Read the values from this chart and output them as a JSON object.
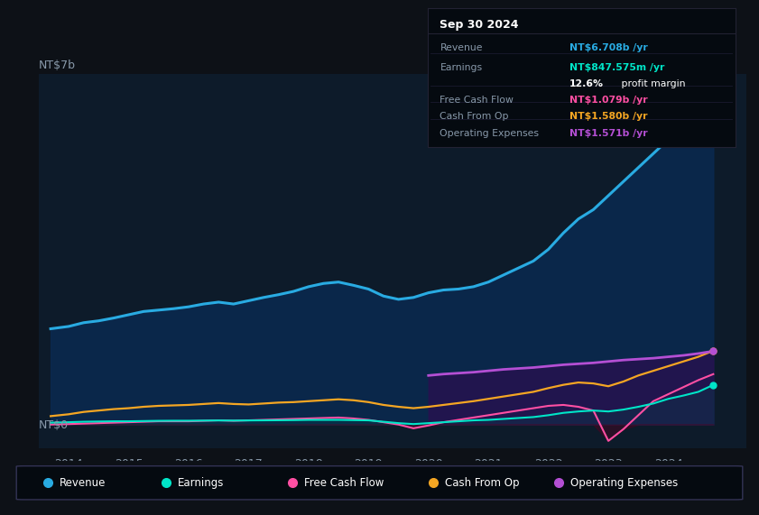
{
  "bg_color": "#0d1117",
  "plot_bg_color": "#0d1b2a",
  "ylabel": "NT$7b",
  "zero_label": "NT$0",
  "x_years": [
    2013.7,
    2014.0,
    2014.25,
    2014.5,
    2014.75,
    2015.0,
    2015.25,
    2015.5,
    2015.75,
    2016.0,
    2016.25,
    2016.5,
    2016.75,
    2017.0,
    2017.25,
    2017.5,
    2017.75,
    2018.0,
    2018.25,
    2018.5,
    2018.75,
    2019.0,
    2019.25,
    2019.5,
    2019.75,
    2020.0,
    2020.25,
    2020.5,
    2020.75,
    2021.0,
    2021.25,
    2021.5,
    2021.75,
    2022.0,
    2022.25,
    2022.5,
    2022.75,
    2023.0,
    2023.25,
    2023.5,
    2023.75,
    2024.0,
    2024.25,
    2024.5,
    2024.75
  ],
  "revenue": [
    2.05,
    2.1,
    2.18,
    2.22,
    2.28,
    2.35,
    2.42,
    2.45,
    2.48,
    2.52,
    2.58,
    2.62,
    2.58,
    2.65,
    2.72,
    2.78,
    2.85,
    2.95,
    3.02,
    3.05,
    2.98,
    2.9,
    2.75,
    2.68,
    2.72,
    2.82,
    2.88,
    2.9,
    2.95,
    3.05,
    3.2,
    3.35,
    3.5,
    3.75,
    4.1,
    4.4,
    4.6,
    4.9,
    5.2,
    5.5,
    5.8,
    6.1,
    6.35,
    6.55,
    6.708
  ],
  "earnings": [
    0.04,
    0.05,
    0.06,
    0.065,
    0.07,
    0.07,
    0.075,
    0.08,
    0.082,
    0.082,
    0.085,
    0.088,
    0.085,
    0.088,
    0.09,
    0.092,
    0.095,
    0.1,
    0.1,
    0.1,
    0.095,
    0.09,
    0.06,
    0.03,
    0.01,
    0.03,
    0.05,
    0.07,
    0.09,
    0.1,
    0.12,
    0.14,
    0.16,
    0.2,
    0.25,
    0.28,
    0.3,
    0.28,
    0.32,
    0.38,
    0.45,
    0.55,
    0.62,
    0.7,
    0.848
  ],
  "free_cash_flow": [
    0.0,
    0.01,
    0.02,
    0.03,
    0.04,
    0.05,
    0.06,
    0.07,
    0.07,
    0.07,
    0.08,
    0.09,
    0.08,
    0.09,
    0.1,
    0.11,
    0.12,
    0.13,
    0.14,
    0.15,
    0.13,
    0.1,
    0.05,
    0.0,
    -0.08,
    -0.02,
    0.05,
    0.1,
    0.15,
    0.2,
    0.25,
    0.3,
    0.35,
    0.4,
    0.42,
    0.38,
    0.3,
    -0.35,
    -0.1,
    0.2,
    0.5,
    0.65,
    0.8,
    0.95,
    1.079
  ],
  "cash_from_op": [
    0.18,
    0.22,
    0.27,
    0.3,
    0.33,
    0.35,
    0.38,
    0.4,
    0.41,
    0.42,
    0.44,
    0.46,
    0.44,
    0.43,
    0.45,
    0.47,
    0.48,
    0.5,
    0.52,
    0.54,
    0.52,
    0.48,
    0.42,
    0.38,
    0.35,
    0.38,
    0.42,
    0.46,
    0.5,
    0.55,
    0.6,
    0.65,
    0.7,
    0.78,
    0.85,
    0.9,
    0.88,
    0.82,
    0.92,
    1.05,
    1.15,
    1.25,
    1.35,
    1.45,
    1.58
  ],
  "op_expenses": [
    0.0,
    0.0,
    0.0,
    0.0,
    0.0,
    0.0,
    0.0,
    0.0,
    0.0,
    0.0,
    0.0,
    0.0,
    0.0,
    0.0,
    0.0,
    0.0,
    0.0,
    0.0,
    0.0,
    0.0,
    0.0,
    0.0,
    0.0,
    0.0,
    0.0,
    1.05,
    1.08,
    1.1,
    1.12,
    1.15,
    1.18,
    1.2,
    1.22,
    1.25,
    1.28,
    1.3,
    1.32,
    1.35,
    1.38,
    1.4,
    1.42,
    1.45,
    1.48,
    1.52,
    1.571
  ],
  "revenue_color": "#29abe2",
  "earnings_color": "#00e5c8",
  "free_cash_flow_color": "#ff4fa3",
  "cash_from_op_color": "#f5a623",
  "op_expenses_color": "#b44fd4",
  "grid_color": "#1e3050",
  "axis_label_color": "#8899aa",
  "tooltip_bg": "#050a10",
  "ylim_max": 7.5,
  "ylim_min": -0.5,
  "x_min": 2013.5,
  "x_max": 2025.3,
  "x_ticks": [
    2014,
    2015,
    2016,
    2017,
    2018,
    2019,
    2020,
    2021,
    2022,
    2023,
    2024
  ],
  "legend_labels": [
    "Revenue",
    "Earnings",
    "Free Cash Flow",
    "Cash From Op",
    "Operating Expenses"
  ],
  "info_box": {
    "date": "Sep 30 2024",
    "revenue_val": "NT$6.708b",
    "revenue_color": "#29abe2",
    "earnings_val": "NT$847.575m",
    "earnings_color": "#00e5c8",
    "profit_margin_pct": "12.6%",
    "fcf_val": "NT$1.079b",
    "fcf_color": "#ff4fa3",
    "cash_op_val": "NT$1.580b",
    "cash_op_color": "#f5a623",
    "op_exp_val": "NT$1.571b",
    "op_exp_color": "#b44fd4"
  }
}
